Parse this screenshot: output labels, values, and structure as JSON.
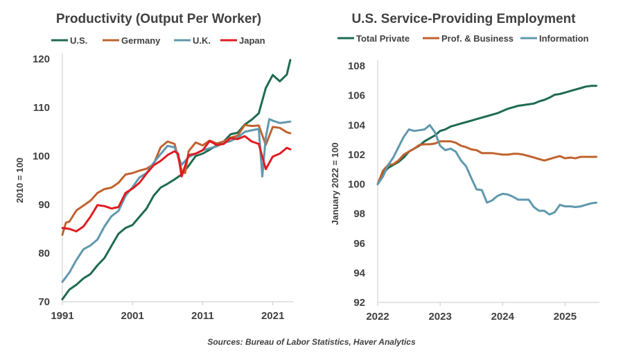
{
  "chart_data": [
    {
      "type": "line",
      "title": "Productivity  (Output Per Worker)",
      "xlabel": "",
      "ylabel": "2010 = 100",
      "ylim": [
        70,
        120
      ],
      "xlim": [
        1991,
        2024
      ],
      "yticks": [
        70,
        80,
        90,
        100,
        110,
        120
      ],
      "xticks": [
        1991,
        2001,
        2011,
        2021
      ],
      "xtick_labels": [
        "1991",
        "2001",
        "2011",
        "2021"
      ],
      "grid": false,
      "legend": "top",
      "series": [
        {
          "name": "U.S.",
          "color": "#1e6b4f",
          "x": [
            1991,
            1992,
            1993,
            1994,
            1995,
            1996,
            1997,
            1998,
            1999,
            2000,
            2001,
            2002,
            2003,
            2004,
            2005,
            2006,
            2007,
            2008,
            2009,
            2010,
            2011,
            2012,
            2013,
            2014,
            2015,
            2016,
            2017,
            2018,
            2019,
            2020,
            2021,
            2022,
            2023,
            2023.5
          ],
          "y": [
            70.5,
            72.5,
            73.5,
            74.8,
            75.7,
            77.5,
            79.0,
            81.5,
            84.0,
            85.2,
            85.8,
            87.5,
            89.2,
            91.8,
            93.5,
            94.3,
            95.2,
            96.2,
            98.0,
            100.0,
            100.5,
            101.3,
            102.2,
            103.0,
            104.5,
            104.8,
            106.5,
            107.5,
            108.8,
            114.0,
            116.7,
            115.4,
            116.8,
            119.8
          ]
        },
        {
          "name": "Germany",
          "color": "#c0622e",
          "x": [
            1991,
            1991.5,
            1992,
            1993,
            1994,
            1995,
            1996,
            1997,
            1998,
            1999,
            2000,
            2001,
            2002,
            2003,
            2004,
            2005,
            2006,
            2007,
            2008,
            2008.5,
            2009,
            2010,
            2011,
            2012,
            2013,
            2014,
            2015,
            2016,
            2017,
            2018,
            2019,
            2020,
            2021,
            2022,
            2023,
            2023.5
          ],
          "y": [
            83.8,
            86.3,
            86.5,
            88.8,
            89.8,
            90.8,
            92.4,
            93.2,
            93.5,
            94.5,
            96.2,
            96.5,
            97.0,
            97.4,
            98.3,
            101.8,
            103.0,
            102.5,
            97.0,
            96.5,
            101.0,
            102.8,
            102.2,
            103.2,
            102.6,
            103.0,
            103.8,
            104.2,
            106.4,
            106.2,
            106.3,
            102.3,
            106.0,
            105.8,
            104.9,
            104.7
          ]
        },
        {
          "name": "U.K.",
          "color": "#5f98ad",
          "x": [
            1991,
            1992,
            1993,
            1994,
            1995,
            1996,
            1997,
            1998,
            1999,
            2000,
            2001,
            2002,
            2003,
            2004,
            2005,
            2006,
            2007,
            2008,
            2009,
            2010,
            2011,
            2012,
            2013,
            2014,
            2015,
            2016,
            2017,
            2018,
            2019,
            2019.5,
            2020,
            2020.5,
            2021,
            2022,
            2023,
            2023.5
          ],
          "y": [
            74.1,
            76.0,
            78.6,
            80.8,
            81.6,
            82.8,
            85.5,
            87.6,
            88.7,
            91.8,
            93.6,
            95.6,
            96.5,
            98.6,
            100.4,
            102.1,
            101.8,
            98.2,
            99.8,
            100.5,
            101.2,
            101.6,
            102.0,
            102.7,
            103.1,
            103.8,
            105.0,
            105.3,
            105.6,
            95.8,
            103.8,
            107.6,
            107.3,
            106.8,
            107.0,
            107.1
          ]
        },
        {
          "name": "Japan",
          "color": "#e01b22",
          "x": [
            1991,
            1992,
            1993,
            1994,
            1995,
            1996,
            1997,
            1998,
            1999,
            2000,
            2001,
            2002,
            2003,
            2004,
            2005,
            2006,
            2007,
            2007.5,
            2008,
            2009,
            2010,
            2011,
            2012,
            2013,
            2014,
            2015,
            2016,
            2017,
            2018,
            2019,
            2020,
            2021,
            2022,
            2023,
            2023.5
          ],
          "y": [
            85.2,
            85.0,
            84.5,
            85.5,
            87.5,
            89.9,
            89.7,
            89.2,
            89.5,
            92.4,
            93.3,
            94.5,
            96.4,
            98.1,
            99.0,
            100.2,
            101.0,
            100.5,
            95.8,
            100.2,
            100.5,
            101.2,
            103.1,
            102.3,
            102.5,
            103.7,
            103.5,
            104.1,
            103.0,
            102.5,
            97.3,
            99.9,
            100.5,
            101.7,
            101.4
          ]
        }
      ]
    },
    {
      "type": "line",
      "title": "U.S. Service-Providing  Employment",
      "xlabel": "",
      "ylabel": "January 2022 = 100",
      "ylim": [
        92,
        108
      ],
      "xlim": [
        2022,
        2025.55
      ],
      "yticks": [
        92,
        94,
        96,
        98,
        100,
        102,
        104,
        106,
        108
      ],
      "xticks": [
        2022,
        2023,
        2024,
        2025
      ],
      "xtick_labels": [
        "2022",
        "2023",
        "2024",
        "2025"
      ],
      "grid": false,
      "legend": "top",
      "series": [
        {
          "name": "Total Private",
          "color": "#1e6b4f",
          "x": [
            2022,
            2022.083,
            2022.167,
            2022.25,
            2022.333,
            2022.417,
            2022.5,
            2022.583,
            2022.667,
            2022.75,
            2022.833,
            2022.917,
            2023,
            2023.083,
            2023.167,
            2023.25,
            2023.333,
            2023.417,
            2023.5,
            2023.583,
            2023.667,
            2023.75,
            2023.833,
            2023.917,
            2024,
            2024.083,
            2024.167,
            2024.25,
            2024.333,
            2024.417,
            2024.5,
            2024.583,
            2024.667,
            2024.75,
            2024.833,
            2024.917,
            2025,
            2025.083,
            2025.167,
            2025.25,
            2025.333,
            2025.417,
            2025.5
          ],
          "y": [
            100.0,
            100.7,
            101.1,
            101.3,
            101.5,
            101.8,
            102.2,
            102.4,
            102.6,
            102.9,
            103.1,
            103.3,
            103.6,
            103.7,
            103.9,
            104.0,
            104.1,
            104.2,
            104.3,
            104.4,
            104.5,
            104.6,
            104.7,
            104.8,
            104.95,
            105.1,
            105.2,
            105.3,
            105.35,
            105.4,
            105.45,
            105.6,
            105.7,
            105.85,
            106.05,
            106.1,
            106.2,
            106.3,
            106.4,
            106.5,
            106.6,
            106.65,
            106.65
          ]
        },
        {
          "name": "Prof. & Business",
          "color": "#c0622e",
          "x": [
            2022,
            2022.083,
            2022.167,
            2022.25,
            2022.333,
            2022.417,
            2022.5,
            2022.583,
            2022.667,
            2022.75,
            2022.833,
            2022.917,
            2023,
            2023.083,
            2023.167,
            2023.25,
            2023.333,
            2023.417,
            2023.5,
            2023.583,
            2023.667,
            2023.75,
            2023.833,
            2023.917,
            2024,
            2024.083,
            2024.167,
            2024.25,
            2024.333,
            2024.417,
            2024.5,
            2024.583,
            2024.667,
            2024.75,
            2024.833,
            2024.917,
            2025,
            2025.083,
            2025.167,
            2025.25,
            2025.333,
            2025.417,
            2025.5
          ],
          "y": [
            100.0,
            100.9,
            101.3,
            101.35,
            101.6,
            102.0,
            102.2,
            102.4,
            102.65,
            102.7,
            102.7,
            102.75,
            102.9,
            102.9,
            102.9,
            102.8,
            102.6,
            102.5,
            102.35,
            102.3,
            102.1,
            102.1,
            102.1,
            102.05,
            102.0,
            102.0,
            102.05,
            102.05,
            102.0,
            101.9,
            101.8,
            101.7,
            101.6,
            101.7,
            101.8,
            101.9,
            101.75,
            101.8,
            101.75,
            101.85,
            101.85,
            101.85,
            101.85
          ]
        },
        {
          "name": "Information",
          "color": "#5f98ad",
          "x": [
            2022,
            2022.083,
            2022.167,
            2022.25,
            2022.333,
            2022.417,
            2022.5,
            2022.583,
            2022.667,
            2022.75,
            2022.833,
            2022.917,
            2023,
            2023.083,
            2023.167,
            2023.25,
            2023.333,
            2023.417,
            2023.5,
            2023.583,
            2023.667,
            2023.75,
            2023.833,
            2023.917,
            2024,
            2024.083,
            2024.167,
            2024.25,
            2024.333,
            2024.417,
            2024.5,
            2024.583,
            2024.667,
            2024.75,
            2024.833,
            2024.917,
            2025,
            2025.083,
            2025.167,
            2025.25,
            2025.333,
            2025.417,
            2025.5
          ],
          "y": [
            100.0,
            100.5,
            101.3,
            101.8,
            102.5,
            103.2,
            103.7,
            103.6,
            103.65,
            103.7,
            104.0,
            103.5,
            102.6,
            102.3,
            102.4,
            102.2,
            101.6,
            101.2,
            100.4,
            99.65,
            99.6,
            98.75,
            98.9,
            99.2,
            99.35,
            99.3,
            99.15,
            98.95,
            98.95,
            98.95,
            98.45,
            98.2,
            98.2,
            97.95,
            98.1,
            98.6,
            98.5,
            98.5,
            98.45,
            98.5,
            98.6,
            98.7,
            98.75
          ]
        }
      ]
    }
  ],
  "footer": {
    "source": "Sources: Bureau of Labor Statistics, Haver Analytics"
  }
}
